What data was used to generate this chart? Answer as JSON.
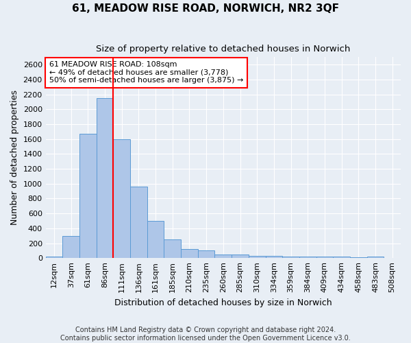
{
  "title": "61, MEADOW RISE ROAD, NORWICH, NR2 3QF",
  "subtitle": "Size of property relative to detached houses in Norwich",
  "xlabel": "Distribution of detached houses by size in Norwich",
  "ylabel": "Number of detached properties",
  "bar_labels": [
    "12sqm",
    "37sqm",
    "61sqm",
    "86sqm",
    "111sqm",
    "136sqm",
    "161sqm",
    "185sqm",
    "210sqm",
    "235sqm",
    "260sqm",
    "285sqm",
    "310sqm",
    "334sqm",
    "359sqm",
    "384sqm",
    "409sqm",
    "434sqm",
    "458sqm",
    "483sqm",
    "508sqm"
  ],
  "bar_values": [
    25,
    300,
    1675,
    2150,
    1600,
    960,
    500,
    250,
    125,
    100,
    50,
    50,
    35,
    35,
    20,
    20,
    20,
    20,
    10,
    25,
    0
  ],
  "bar_color": "#aec6e8",
  "bar_edge_color": "#5b9bd5",
  "vline_color": "red",
  "annotation_text": "61 MEADOW RISE ROAD: 108sqm\n← 49% of detached houses are smaller (3,778)\n50% of semi-detached houses are larger (3,875) →",
  "annotation_box_color": "white",
  "annotation_box_edge_color": "red",
  "ylim": [
    0,
    2700
  ],
  "yticks": [
    0,
    200,
    400,
    600,
    800,
    1000,
    1200,
    1400,
    1600,
    1800,
    2000,
    2200,
    2400,
    2600
  ],
  "footer_line1": "Contains HM Land Registry data © Crown copyright and database right 2024.",
  "footer_line2": "Contains public sector information licensed under the Open Government Licence v3.0.",
  "bg_color": "#e8eef5",
  "plot_bg_color": "#e8eef5",
  "grid_color": "#ffffff",
  "title_fontsize": 11,
  "subtitle_fontsize": 9.5,
  "label_fontsize": 9,
  "tick_fontsize": 8,
  "annotation_fontsize": 8,
  "footer_fontsize": 7
}
